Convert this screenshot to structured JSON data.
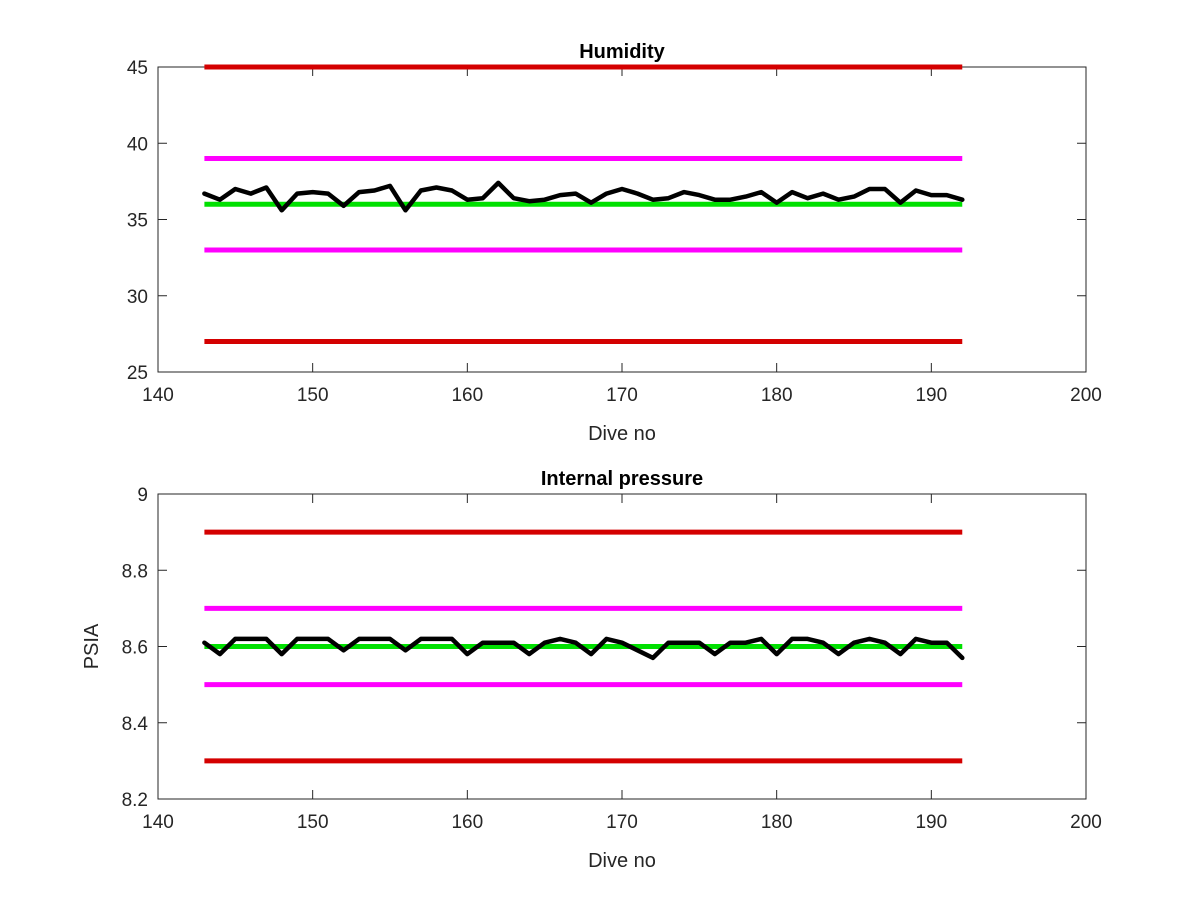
{
  "chart_data": [
    {
      "type": "line",
      "title": "Humidity",
      "xlabel": "Dive no",
      "ylabel": "",
      "xlim": [
        140,
        200
      ],
      "ylim": [
        25,
        45
      ],
      "xticks": [
        140,
        150,
        160,
        170,
        180,
        190,
        200
      ],
      "yticks": [
        25,
        30,
        35,
        40,
        45
      ],
      "grid": false,
      "reference_lines": [
        {
          "y": 45,
          "x_range": [
            143,
            192
          ],
          "color": "#d40000"
        },
        {
          "y": 39,
          "x_range": [
            143,
            192
          ],
          "color": "#ff00ff"
        },
        {
          "y": 36,
          "x_range": [
            143,
            192
          ],
          "color": "#00e000"
        },
        {
          "y": 33,
          "x_range": [
            143,
            192
          ],
          "color": "#ff00ff"
        },
        {
          "y": 27,
          "x_range": [
            143,
            192
          ],
          "color": "#d40000"
        }
      ],
      "series": [
        {
          "color": "#000000",
          "x": [
            143,
            144,
            145,
            146,
            147,
            148,
            149,
            150,
            151,
            152,
            153,
            154,
            155,
            156,
            157,
            158,
            159,
            160,
            161,
            162,
            163,
            164,
            165,
            166,
            167,
            168,
            169,
            170,
            171,
            172,
            173,
            174,
            175,
            176,
            177,
            178,
            179,
            180,
            181,
            182,
            183,
            184,
            185,
            186,
            187,
            188,
            189,
            190,
            191,
            192
          ],
          "values": [
            36.7,
            36.3,
            37.0,
            36.7,
            37.1,
            35.6,
            36.7,
            36.8,
            36.7,
            35.9,
            36.8,
            36.9,
            37.2,
            35.6,
            36.9,
            37.1,
            36.9,
            36.3,
            36.4,
            37.4,
            36.4,
            36.2,
            36.3,
            36.6,
            36.7,
            36.1,
            36.7,
            37.0,
            36.7,
            36.3,
            36.4,
            36.8,
            36.6,
            36.3,
            36.3,
            36.5,
            36.8,
            36.1,
            36.8,
            36.4,
            36.7,
            36.3,
            36.5,
            37.0,
            37.0,
            36.1,
            36.9,
            36.6,
            36.6,
            36.3
          ]
        }
      ]
    },
    {
      "type": "line",
      "title": "Internal pressure",
      "xlabel": "Dive no",
      "ylabel": "PSIA",
      "xlim": [
        140,
        200
      ],
      "ylim": [
        8.2,
        9.0
      ],
      "xticks": [
        140,
        150,
        160,
        170,
        180,
        190,
        200
      ],
      "yticks": [
        8.2,
        8.4,
        8.6,
        8.8,
        9.0
      ],
      "ytick_labels": [
        "8.2",
        "8.4",
        "8.6",
        "8.8",
        "9"
      ],
      "grid": false,
      "reference_lines": [
        {
          "y": 8.9,
          "x_range": [
            143,
            192
          ],
          "color": "#d40000"
        },
        {
          "y": 8.7,
          "x_range": [
            143,
            192
          ],
          "color": "#ff00ff"
        },
        {
          "y": 8.6,
          "x_range": [
            143,
            192
          ],
          "color": "#00e000"
        },
        {
          "y": 8.5,
          "x_range": [
            143,
            192
          ],
          "color": "#ff00ff"
        },
        {
          "y": 8.3,
          "x_range": [
            143,
            192
          ],
          "color": "#d40000"
        }
      ],
      "series": [
        {
          "color": "#000000",
          "x": [
            143,
            144,
            145,
            146,
            147,
            148,
            149,
            150,
            151,
            152,
            153,
            154,
            155,
            156,
            157,
            158,
            159,
            160,
            161,
            162,
            163,
            164,
            165,
            166,
            167,
            168,
            169,
            170,
            171,
            172,
            173,
            174,
            175,
            176,
            177,
            178,
            179,
            180,
            181,
            182,
            183,
            184,
            185,
            186,
            187,
            188,
            189,
            190,
            191,
            192
          ],
          "values": [
            8.61,
            8.58,
            8.62,
            8.62,
            8.62,
            8.58,
            8.62,
            8.62,
            8.62,
            8.59,
            8.62,
            8.62,
            8.62,
            8.59,
            8.62,
            8.62,
            8.62,
            8.58,
            8.61,
            8.61,
            8.61,
            8.58,
            8.61,
            8.62,
            8.61,
            8.58,
            8.62,
            8.61,
            8.59,
            8.57,
            8.61,
            8.61,
            8.61,
            8.58,
            8.61,
            8.61,
            8.62,
            8.58,
            8.62,
            8.62,
            8.61,
            8.58,
            8.61,
            8.62,
            8.61,
            8.58,
            8.62,
            8.61,
            8.61,
            8.57
          ]
        }
      ]
    }
  ]
}
